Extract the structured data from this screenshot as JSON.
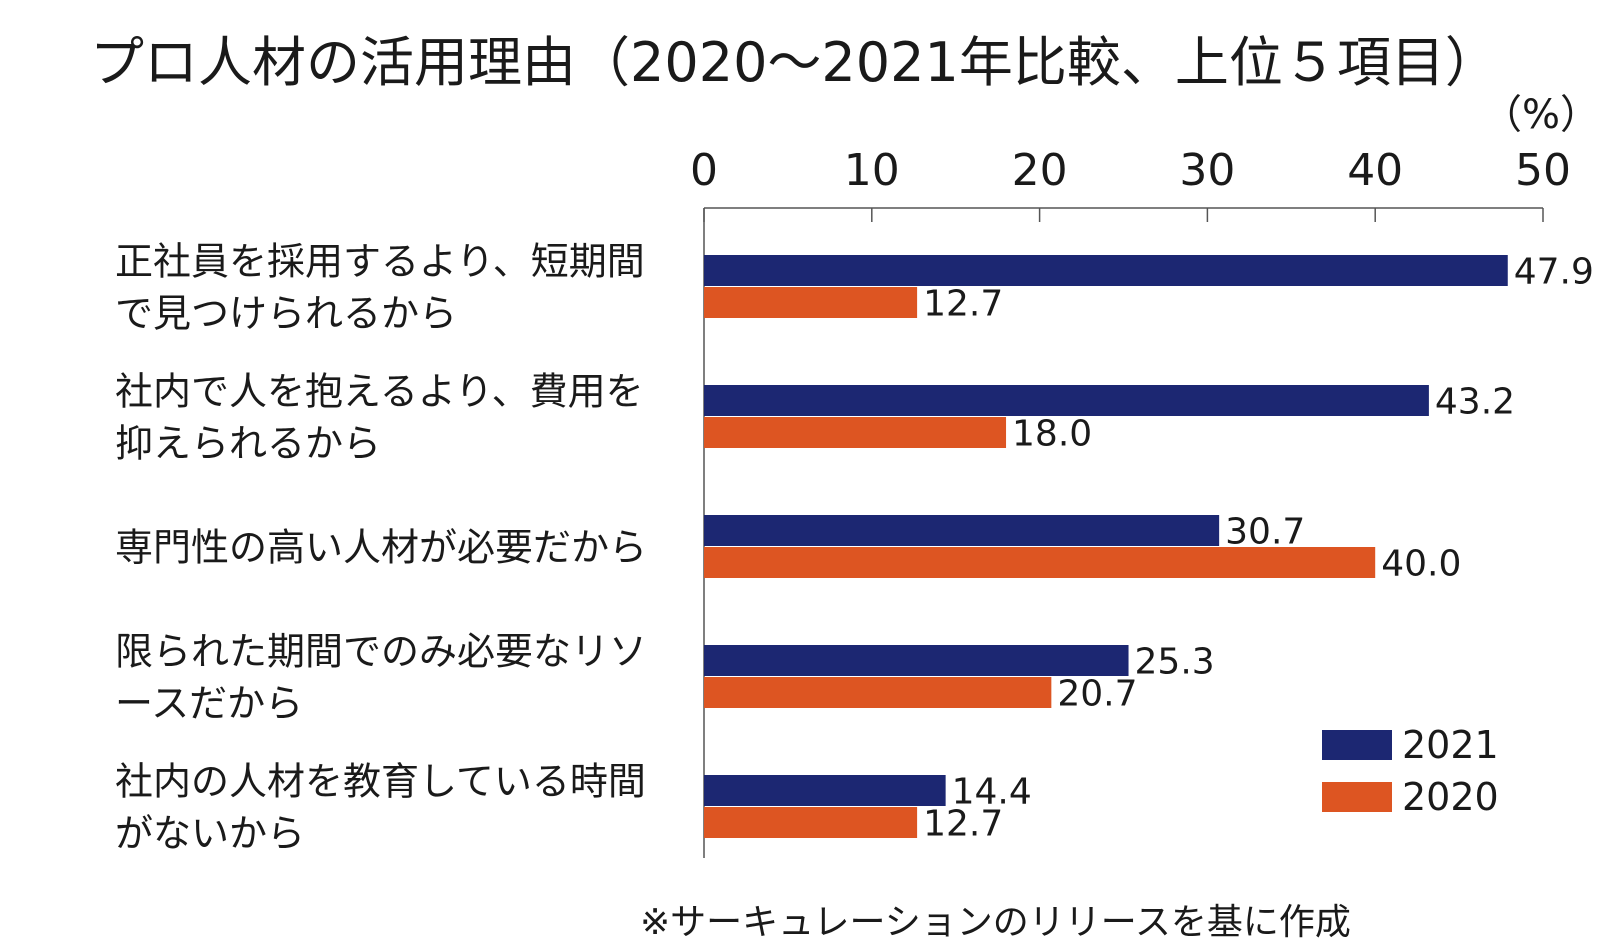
{
  "chart_data": {
    "type": "bar",
    "orientation": "horizontal",
    "title": "プロ人材の活用理由（2020～2021年比較、上位５項目）",
    "unit_label": "（%）",
    "xlim": [
      0,
      50
    ],
    "x_ticks": [
      0,
      10,
      20,
      30,
      40,
      50
    ],
    "grid": false,
    "legend_position": "bottom-right",
    "categories": [
      [
        "正社員を採用するより、短期間",
        "で見つけられるから"
      ],
      [
        "社内で人を抱えるより、費用を",
        "抑えられるから"
      ],
      [
        "専門性の高い人材が必要だから"
      ],
      [
        "限られた期間でのみ必要なリソ",
        "ースだから"
      ],
      [
        "社内の人材を教育している時間",
        "がないから"
      ]
    ],
    "series": [
      {
        "name": "2021",
        "color": "#1c2772",
        "values": [
          47.9,
          43.2,
          30.7,
          25.3,
          14.4
        ],
        "labels": [
          "47.9",
          "43.2",
          "30.7",
          "25.3",
          "14.4"
        ]
      },
      {
        "name": "2020",
        "color": "#dd5522",
        "values": [
          12.7,
          18.0,
          40.0,
          20.7,
          12.7
        ],
        "labels": [
          "12.7",
          "18.0",
          "40.0",
          "20.7",
          "12.7"
        ]
      }
    ]
  },
  "source_note": "※サーキュレーションのリリースを基に作成"
}
